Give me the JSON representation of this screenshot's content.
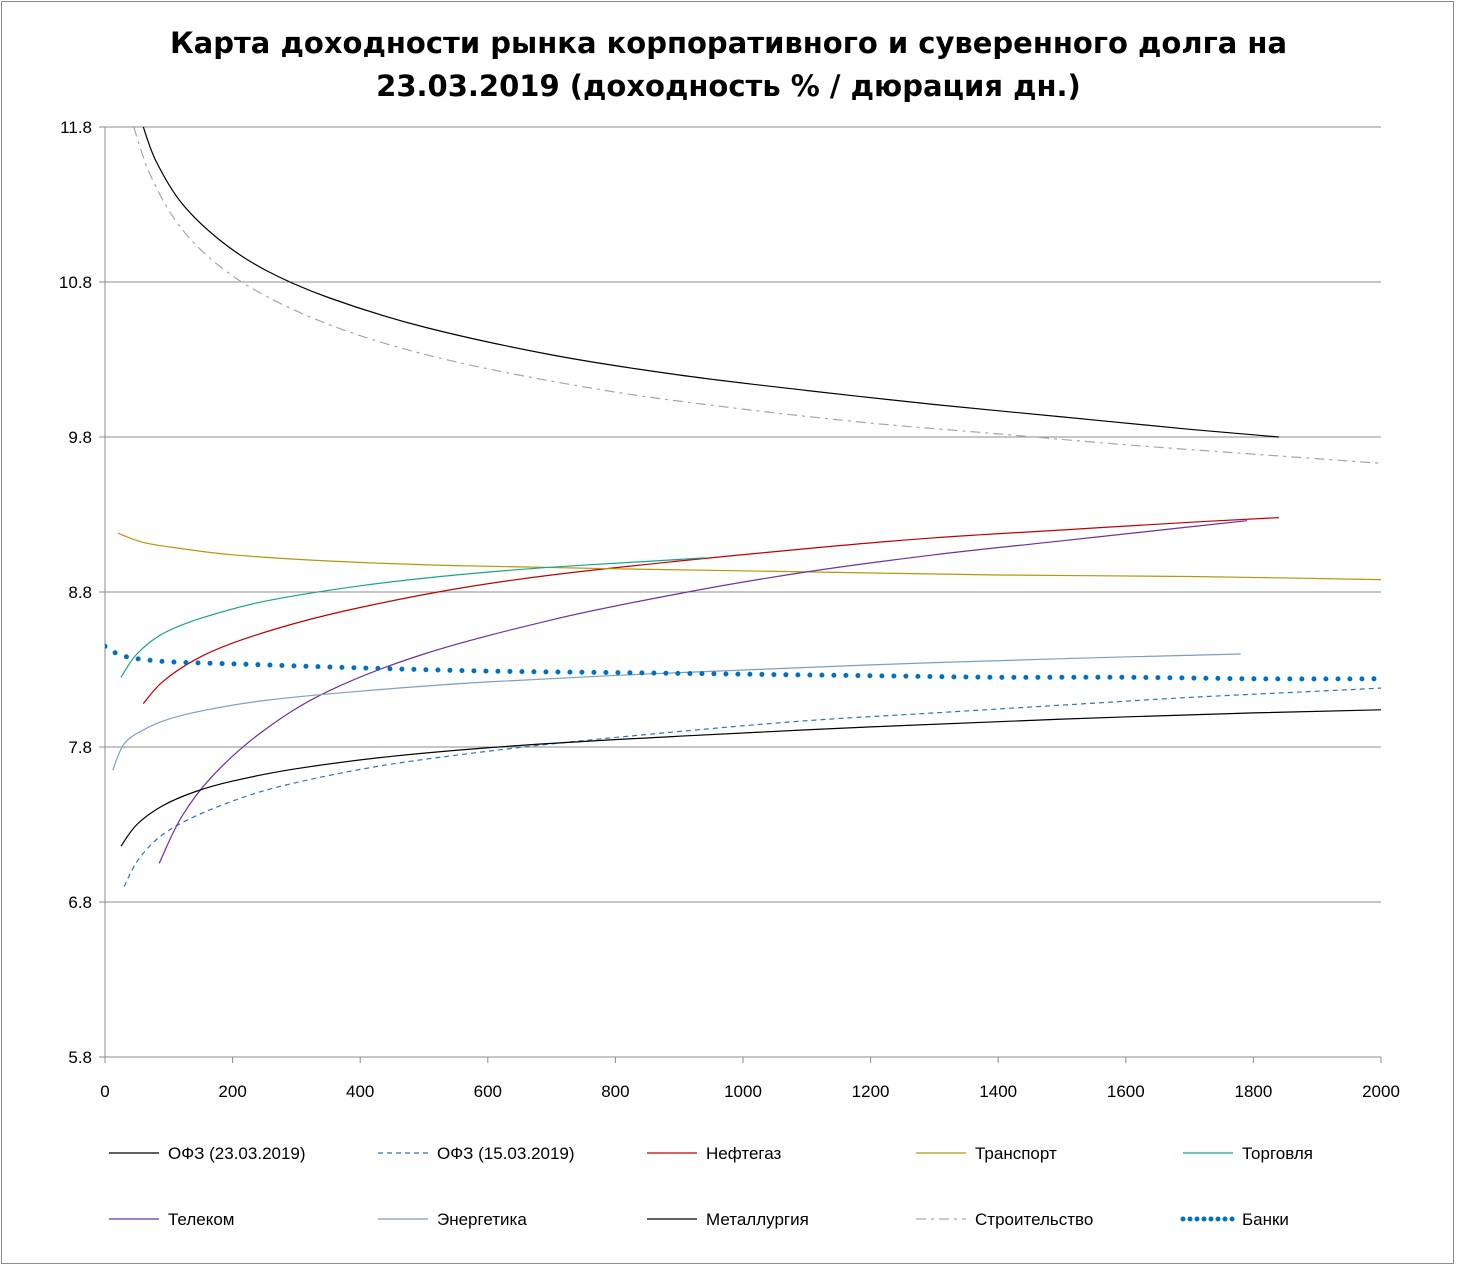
{
  "chart_data": {
    "type": "line",
    "title": "Карта доходности рынка корпоративного и суверенного долга на 23.03.2019 (доходность % / дюрация дн.)",
    "title_lines": [
      "Карта доходности рынка корпоративного и суверенного долга на",
      "23.03.2019 (доходность % / дюрация дн.)"
    ],
    "xlabel": "",
    "ylabel": "",
    "xlim": [
      0,
      2000
    ],
    "ylim": [
      5.8,
      11.8
    ],
    "x_ticks": [
      0,
      200,
      400,
      600,
      800,
      1000,
      1200,
      1400,
      1600,
      1800,
      2000
    ],
    "y_ticks": [
      5.8,
      6.8,
      7.8,
      8.8,
      9.8,
      10.8,
      11.8
    ],
    "grid": "horizontal",
    "legend_position": "bottom",
    "series": [
      {
        "name": "ОФЗ (23.03.2019)",
        "color": "#000000",
        "style": "solid",
        "width": 1.2,
        "x": [
          60,
          80,
          120,
          180,
          250,
          350,
          500,
          700,
          900,
          1100,
          1300,
          1500,
          1700,
          1840
        ],
        "y": [
          11.8,
          11.58,
          11.31,
          11.07,
          10.88,
          10.7,
          10.51,
          10.33,
          10.2,
          10.1,
          10.01,
          9.93,
          9.85,
          9.8
        ]
      },
      {
        "name": "ОФЗ (15.03.2019)",
        "color": "#2e75b6",
        "style": "dashed",
        "width": 1.2,
        "x": [
          30,
          50,
          80,
          120,
          180,
          260,
          380,
          500,
          700,
          900,
          1100,
          1300,
          1500,
          1700,
          1900,
          2000
        ],
        "y": [
          6.9,
          7.06,
          7.2,
          7.31,
          7.42,
          7.53,
          7.64,
          7.72,
          7.82,
          7.9,
          7.97,
          8.02,
          8.07,
          8.12,
          8.16,
          8.18
        ]
      },
      {
        "name": "Нефтегаз",
        "color": "#c00000",
        "style": "solid",
        "width": 1.2,
        "x": [
          60,
          90,
          140,
          200,
          300,
          400,
          550,
          700,
          900,
          1100,
          1300,
          1500,
          1700,
          1840
        ],
        "y": [
          8.08,
          8.22,
          8.36,
          8.47,
          8.6,
          8.7,
          8.82,
          8.91,
          9.0,
          9.08,
          9.15,
          9.2,
          9.25,
          9.28
        ]
      },
      {
        "name": "Транспорт",
        "color": "#b8960c",
        "style": "solid",
        "width": 1.2,
        "x": [
          20,
          60,
          120,
          200,
          350,
          550,
          800,
          1100,
          1400,
          1700,
          2000
        ],
        "y": [
          9.18,
          9.12,
          9.08,
          9.04,
          9.0,
          8.97,
          8.95,
          8.93,
          8.91,
          8.9,
          8.88
        ]
      },
      {
        "name": "Торговля",
        "color": "#17a589",
        "style": "solid",
        "width": 1.2,
        "x": [
          25,
          50,
          90,
          150,
          250,
          400,
          550,
          700,
          860,
          940
        ],
        "y": [
          8.25,
          8.4,
          8.53,
          8.63,
          8.74,
          8.84,
          8.91,
          8.96,
          9.0,
          9.02
        ]
      },
      {
        "name": "Телеком",
        "color": "#7030a0",
        "style": "solid",
        "width": 1.2,
        "x": [
          85,
          120,
          170,
          250,
          350,
          500,
          700,
          900,
          1100,
          1300,
          1500,
          1700,
          1790
        ],
        "y": [
          7.05,
          7.35,
          7.62,
          7.91,
          8.16,
          8.4,
          8.62,
          8.79,
          8.93,
          9.04,
          9.13,
          9.22,
          9.26
        ]
      },
      {
        "name": "Энергетика",
        "color": "#7f9fbf",
        "style": "solid",
        "width": 1.2,
        "x": [
          12,
          30,
          60,
          100,
          160,
          250,
          400,
          600,
          900,
          1200,
          1500,
          1780
        ],
        "y": [
          7.65,
          7.82,
          7.91,
          7.98,
          8.04,
          8.1,
          8.16,
          8.22,
          8.28,
          8.33,
          8.37,
          8.4
        ]
      },
      {
        "name": "Металлургия",
        "color": "#000000",
        "style": "solid",
        "width": 1.2,
        "x": [
          25,
          50,
          90,
          140,
          200,
          300,
          450,
          650,
          900,
          1200,
          1500,
          1800,
          2000
        ],
        "y": [
          7.16,
          7.3,
          7.42,
          7.51,
          7.58,
          7.66,
          7.74,
          7.81,
          7.87,
          7.93,
          7.98,
          8.02,
          8.04
        ]
      },
      {
        "name": "Строительство",
        "color": "#a6a6a6",
        "style": "dashdot",
        "width": 1.2,
        "x": [
          45,
          70,
          110,
          160,
          230,
          330,
          450,
          600,
          800,
          1000,
          1200,
          1400,
          1600,
          1800,
          2000
        ],
        "y": [
          11.8,
          11.5,
          11.2,
          10.97,
          10.76,
          10.56,
          10.39,
          10.24,
          10.09,
          9.98,
          9.89,
          9.82,
          9.75,
          9.69,
          9.63
        ]
      },
      {
        "name": "Банки",
        "color": "#0070c0",
        "style": "dotted",
        "width": 5,
        "x": [
          0,
          20,
          50,
          100,
          170,
          250,
          400,
          600,
          800,
          1000,
          1200,
          1400,
          1600,
          1800,
          2000
        ],
        "y": [
          8.45,
          8.4,
          8.37,
          8.35,
          8.34,
          8.33,
          8.31,
          8.29,
          8.28,
          8.27,
          8.26,
          8.25,
          8.25,
          8.24,
          8.24
        ]
      }
    ]
  }
}
